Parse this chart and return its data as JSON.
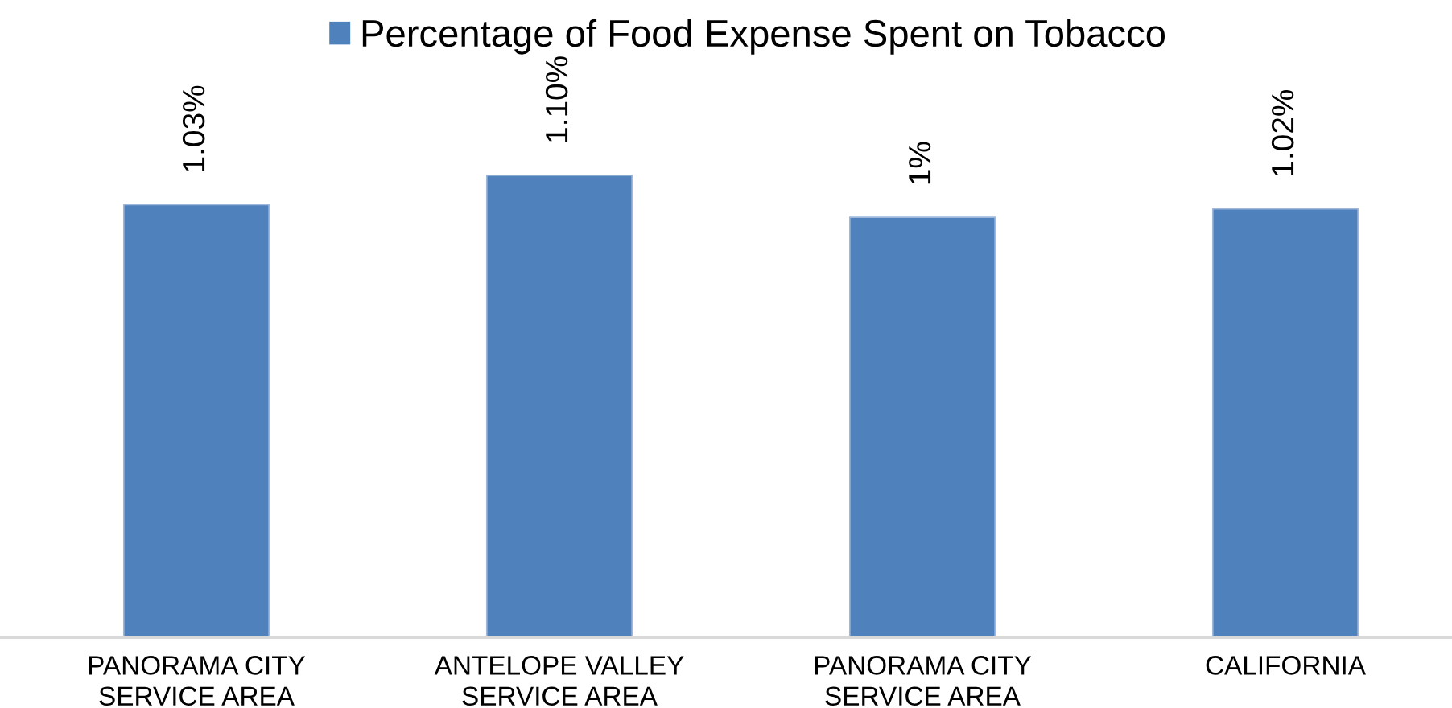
{
  "chart_data": {
    "type": "bar",
    "categories": [
      "PANORAMA CITY\nSERVICE AREA",
      "ANTELOPE VALLEY\nSERVICE AREA",
      "PANORAMA CITY\nSERVICE AREA",
      "CALIFORNIA"
    ],
    "series": [
      {
        "name": "Percentage of Food Expense Spent on Tobacco",
        "color": "#4f81bd",
        "values": [
          1.03,
          1.1,
          1,
          1.02
        ],
        "value_labels": [
          "1.03%",
          "1.10%",
          "1%",
          "1.02%"
        ]
      }
    ],
    "tick_labels": "x",
    "legend": "top",
    "grid": false
  }
}
